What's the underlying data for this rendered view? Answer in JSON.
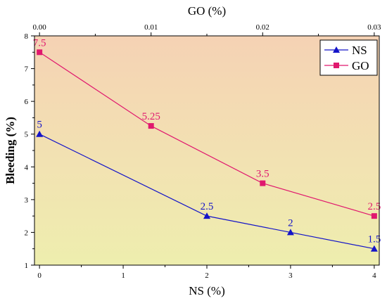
{
  "chart_data": {
    "type": "line",
    "xlabel": "NS (%)",
    "x2label": "GO (%)",
    "ylabel": "Bleeding (%)",
    "x_ticks": [
      0,
      1,
      2,
      3,
      4
    ],
    "x2_ticks": [
      "0.00",
      "0.01",
      "0.02",
      "0.03"
    ],
    "y_ticks": [
      1,
      2,
      3,
      4,
      5,
      6,
      7,
      8
    ],
    "xlim": [
      -0.06,
      4.06
    ],
    "ylim": [
      1,
      8
    ],
    "x2lim": [
      -0.00045,
      0.03045
    ],
    "grid": false,
    "legend_position": "top-right",
    "series": [
      {
        "name": "NS",
        "axis": "bottom",
        "color": "#1414c8",
        "marker": "triangle",
        "x": [
          0,
          2,
          3,
          4
        ],
        "y": [
          5,
          2.5,
          2,
          1.5
        ],
        "labels": [
          "5",
          "2.5",
          "2",
          "1.5"
        ]
      },
      {
        "name": "GO",
        "axis": "top",
        "color": "#e0186e",
        "marker": "square",
        "x": [
          0.0,
          0.01,
          0.02,
          0.03
        ],
        "y": [
          7.5,
          5.25,
          3.5,
          2.5
        ],
        "labels": [
          "7.5",
          "5.25",
          "3.5",
          "2.5"
        ]
      }
    ]
  }
}
